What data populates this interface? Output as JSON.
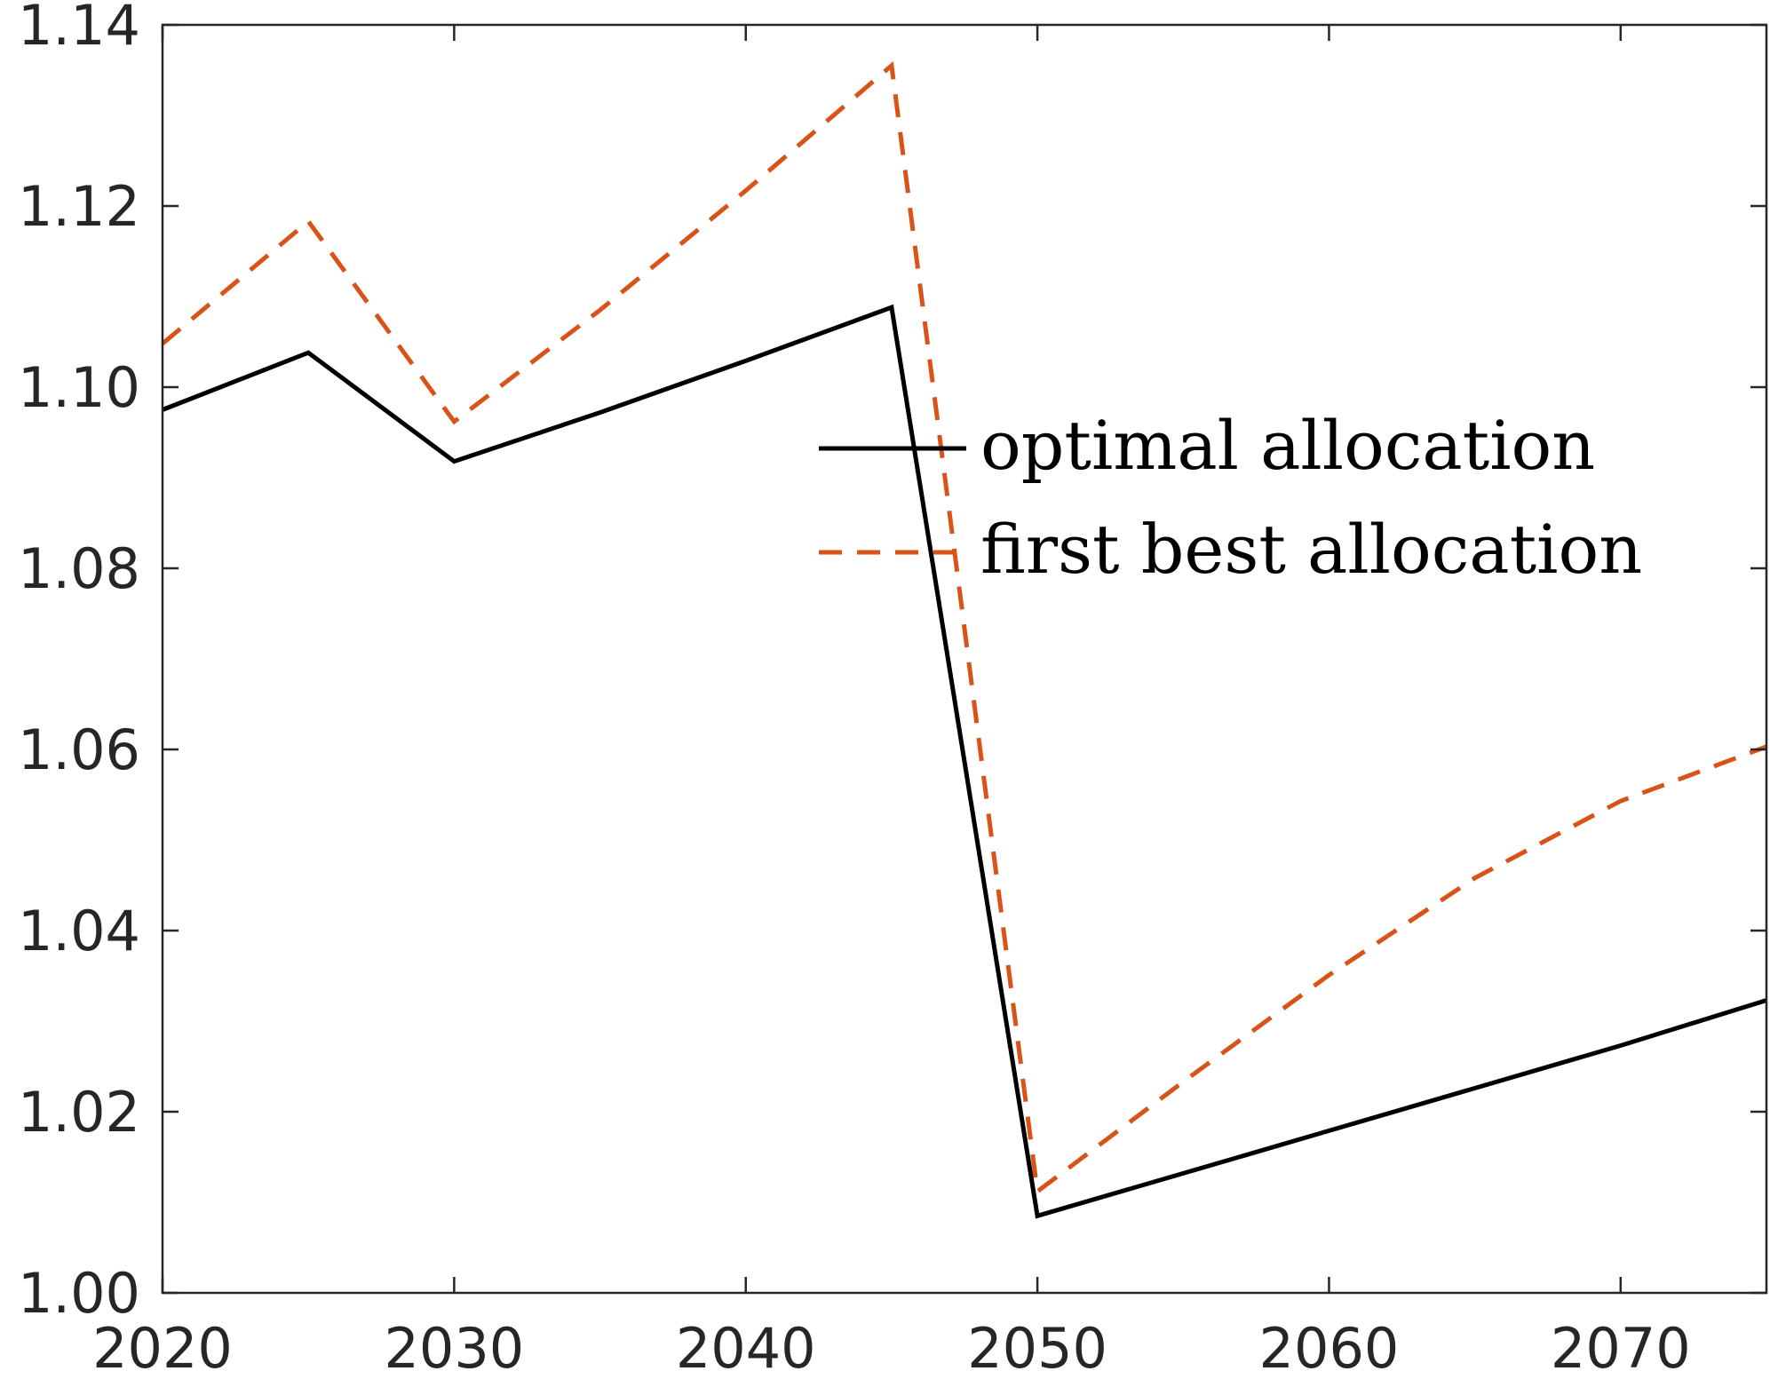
{
  "chart_data": {
    "type": "line",
    "title": "",
    "xlabel": "",
    "ylabel": "",
    "xlim": [
      2020,
      2075
    ],
    "ylim": [
      1.0,
      1.14
    ],
    "xticks": [
      "2020",
      "2030",
      "2040",
      "2050",
      "2060",
      "2070"
    ],
    "yticks": [
      "1.00",
      "1.02",
      "1.04",
      "1.06",
      "1.08",
      "1.10",
      "1.12",
      "1.14"
    ],
    "grid": false,
    "legend_position": "right, mid-upper",
    "series": [
      {
        "name": "optimal allocation",
        "color": "#000000",
        "style": "solid",
        "x": [
          2020,
          2025,
          2030,
          2035,
          2040,
          2045,
          2050,
          2055,
          2060,
          2065,
          2070,
          2075
        ],
        "y": [
          1.0975,
          1.1038,
          1.0918,
          1.0972,
          1.1029,
          1.1088,
          1.0085,
          1.0132,
          1.0179,
          1.0226,
          1.0273,
          1.0323
        ]
      },
      {
        "name": "first best allocation",
        "color": "#D95319",
        "style": "dashed",
        "x": [
          2020,
          2025,
          2030,
          2035,
          2040,
          2045,
          2050,
          2055,
          2060,
          2065,
          2070,
          2075
        ],
        "y": [
          1.1048,
          1.1183,
          1.0962,
          1.1085,
          1.1217,
          1.1355,
          1.0112,
          1.0233,
          1.0351,
          1.0458,
          1.0543,
          1.0603
        ]
      }
    ]
  }
}
